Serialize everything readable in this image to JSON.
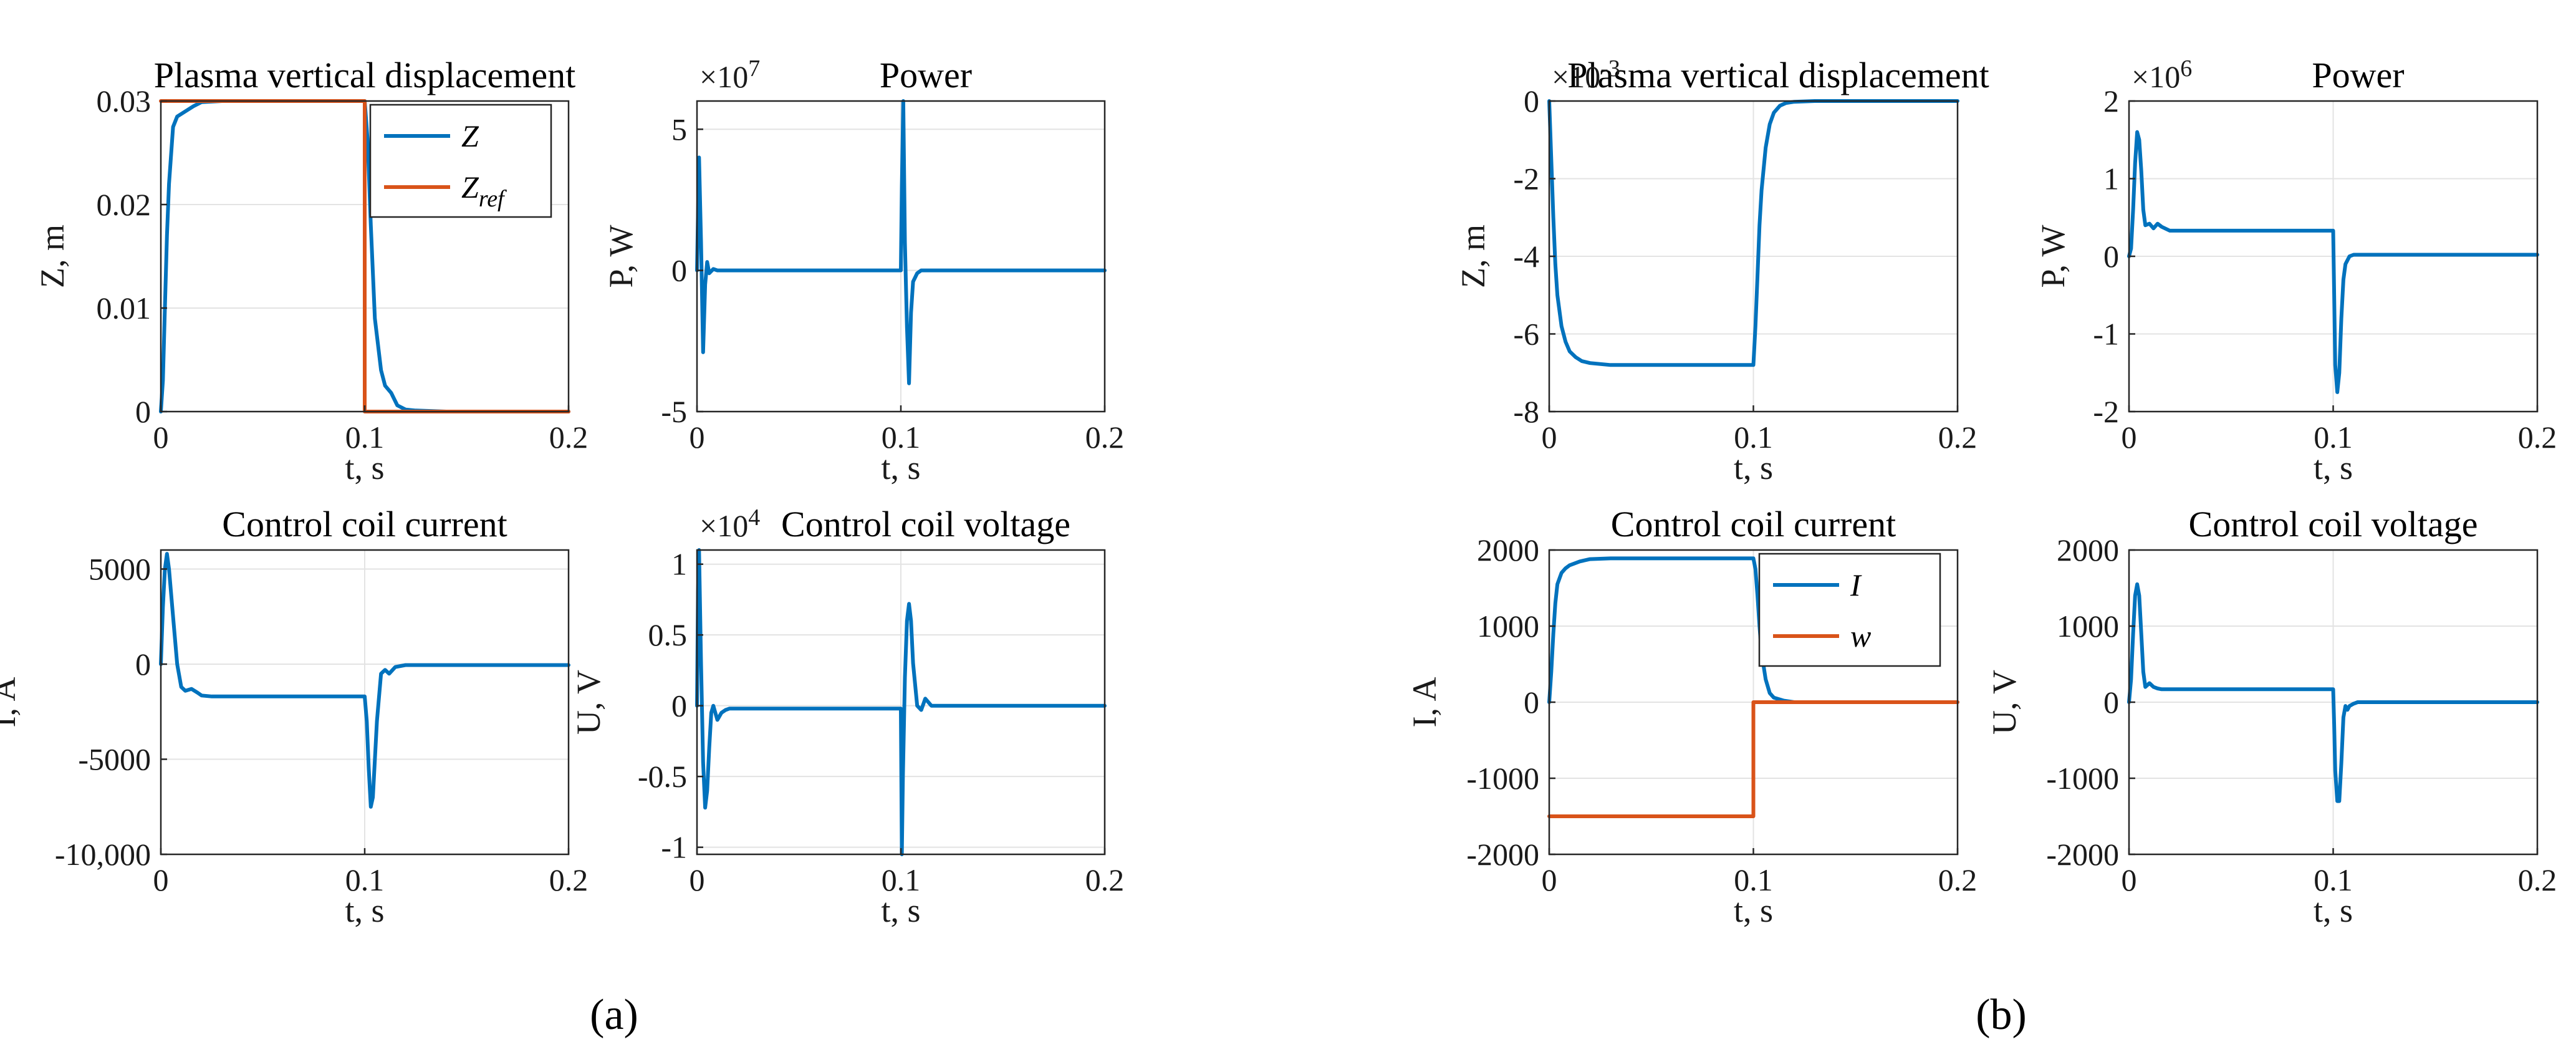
{
  "figure": {
    "caption_a": "(a)",
    "caption_b": "(b)",
    "colors": {
      "blue": "#0072BD",
      "orange": "#D95319",
      "grid": "#e3e3e3",
      "axis": "#262626"
    }
  },
  "chart_data": [
    {
      "id": "a1",
      "type": "line",
      "title": "Plasma vertical displacement",
      "xlabel": "t, s",
      "ylabel": "Z, m",
      "xlim": [
        0,
        0.2
      ],
      "ylim": [
        0,
        0.03
      ],
      "xticks": [
        0,
        0.1,
        0.2
      ],
      "xtick_labels": [
        "0",
        "0.1",
        "0.2"
      ],
      "yticks": [
        0,
        0.01,
        0.02,
        0.03
      ],
      "ytick_labels": [
        "0",
        "0.01",
        "0.02",
        "0.03"
      ],
      "legend": [
        "Z",
        "Zref"
      ],
      "series": [
        {
          "name": "Z",
          "color": "#0072BD",
          "x": [
            0,
            0.001,
            0.002,
            0.003,
            0.004,
            0.006,
            0.008,
            0.012,
            0.016,
            0.02,
            0.03,
            0.05,
            0.08,
            0.1,
            0.1015,
            0.103,
            0.105,
            0.108,
            0.11,
            0.113,
            0.116,
            0.12,
            0.125,
            0.14,
            0.2
          ],
          "y": [
            0,
            0.003,
            0.01,
            0.017,
            0.022,
            0.0275,
            0.0285,
            0.029,
            0.0295,
            0.0299,
            0.03,
            0.03,
            0.03,
            0.03,
            0.026,
            0.018,
            0.009,
            0.004,
            0.0025,
            0.0018,
            0.0006,
            0.0002,
            0.0001,
            0,
            0
          ]
        },
        {
          "name": "Zref",
          "color": "#D95319",
          "x": [
            0,
            0.1,
            0.1,
            0.2
          ],
          "y": [
            0.03,
            0.03,
            0,
            0
          ]
        }
      ]
    },
    {
      "id": "a2",
      "type": "line",
      "title": "Power",
      "multiplier": "×10^7",
      "xlabel": "t, s",
      "ylabel": "P, W",
      "xlim": [
        0,
        0.2
      ],
      "ylim": [
        -5,
        6
      ],
      "xticks": [
        0,
        0.1,
        0.2
      ],
      "xtick_labels": [
        "0",
        "0.1",
        "0.2"
      ],
      "yticks": [
        -5,
        0,
        5
      ],
      "ytick_labels": [
        "-5",
        "0",
        "5"
      ],
      "series": [
        {
          "name": "P",
          "color": "#0072BD",
          "x": [
            0,
            0.0005,
            0.001,
            0.002,
            0.003,
            0.004,
            0.005,
            0.006,
            0.008,
            0.01,
            0.015,
            0.02,
            0.1,
            0.1005,
            0.1012,
            0.102,
            0.103,
            0.104,
            0.105,
            0.106,
            0.108,
            0.11,
            0.2
          ],
          "y": [
            0,
            2,
            4,
            1,
            -2.9,
            -0.5,
            0.3,
            -0.1,
            0.05,
            0,
            0,
            0,
            0,
            3,
            6,
            1,
            -2,
            -4,
            -1.5,
            -0.4,
            -0.1,
            0,
            0
          ]
        }
      ]
    },
    {
      "id": "a3",
      "type": "line",
      "title": "Control coil current",
      "xlabel": "t, s",
      "ylabel": "I, A",
      "xlim": [
        0,
        0.2
      ],
      "ylim": [
        -10000,
        6000
      ],
      "xticks": [
        0,
        0.1,
        0.2
      ],
      "xtick_labels": [
        "0",
        "0.1",
        "0.2"
      ],
      "yticks": [
        -10000,
        -5000,
        0,
        5000
      ],
      "ytick_labels": [
        "-10,000",
        "-5000",
        "0",
        "5000"
      ],
      "series": [
        {
          "name": "I",
          "color": "#0072BD",
          "x": [
            0,
            0.001,
            0.002,
            0.003,
            0.004,
            0.006,
            0.008,
            0.01,
            0.012,
            0.015,
            0.018,
            0.02,
            0.025,
            0.03,
            0.1,
            0.101,
            0.102,
            0.103,
            0.104,
            0.106,
            0.108,
            0.11,
            0.112,
            0.115,
            0.12,
            0.2
          ],
          "y": [
            0,
            3000,
            5000,
            5800,
            5000,
            2500,
            0,
            -1200,
            -1400,
            -1300,
            -1500,
            -1650,
            -1700,
            -1700,
            -1700,
            -3000,
            -5500,
            -7500,
            -7000,
            -3000,
            -500,
            -300,
            -500,
            -150,
            -50,
            -50
          ]
        }
      ]
    },
    {
      "id": "a4",
      "type": "line",
      "title": "Control coil voltage",
      "multiplier": "×10^4",
      "xlabel": "t, s",
      "ylabel": "U, V",
      "xlim": [
        0,
        0.2
      ],
      "ylim": [
        -1.05,
        1.1
      ],
      "xticks": [
        0,
        0.1,
        0.2
      ],
      "xtick_labels": [
        "0",
        "0.1",
        "0.2"
      ],
      "yticks": [
        -1,
        -0.5,
        0,
        0.5,
        1
      ],
      "ytick_labels": [
        "-1",
        "-0.5",
        "0",
        "0.5",
        "1"
      ],
      "series": [
        {
          "name": "U",
          "color": "#0072BD",
          "x": [
            0,
            0.0005,
            0.001,
            0.002,
            0.003,
            0.004,
            0.005,
            0.006,
            0.007,
            0.008,
            0.009,
            0.01,
            0.012,
            0.014,
            0.016,
            0.02,
            0.1,
            0.1005,
            0.101,
            0.102,
            0.103,
            0.104,
            0.105,
            0.106,
            0.108,
            0.11,
            0.112,
            0.115,
            0.2
          ],
          "y": [
            0,
            0.8,
            1.1,
            0.3,
            -0.4,
            -0.72,
            -0.6,
            -0.3,
            -0.05,
            0,
            -0.05,
            -0.1,
            -0.05,
            -0.03,
            -0.02,
            -0.02,
            -0.02,
            -1.05,
            -0.5,
            0.2,
            0.6,
            0.72,
            0.6,
            0.3,
            0,
            -0.03,
            0.05,
            0,
            0
          ]
        }
      ]
    },
    {
      "id": "b1",
      "type": "line",
      "title": "Plasma vertical displacement",
      "multiplier": "×10^-3",
      "xlabel": "t, s",
      "ylabel": "Z, m",
      "xlim": [
        0,
        0.2
      ],
      "ylim": [
        -8,
        0
      ],
      "xticks": [
        0,
        0.1,
        0.2
      ],
      "xtick_labels": [
        "0",
        "0.1",
        "0.2"
      ],
      "yticks": [
        -8,
        -6,
        -4,
        -2,
        0
      ],
      "ytick_labels": [
        "-8",
        "-6",
        "-4",
        "-2",
        "0"
      ],
      "series": [
        {
          "name": "Z",
          "color": "#0072BD",
          "x": [
            0,
            0.001,
            0.002,
            0.003,
            0.004,
            0.006,
            0.008,
            0.01,
            0.013,
            0.016,
            0.02,
            0.03,
            0.05,
            0.1,
            0.101,
            0.102,
            0.103,
            0.104,
            0.106,
            0.108,
            0.11,
            0.113,
            0.116,
            0.12,
            0.13,
            0.2
          ],
          "y": [
            0,
            -1.5,
            -3,
            -4.2,
            -5,
            -5.8,
            -6.2,
            -6.45,
            -6.6,
            -6.7,
            -6.75,
            -6.8,
            -6.8,
            -6.8,
            -5.8,
            -4.5,
            -3.2,
            -2.3,
            -1.2,
            -0.6,
            -0.3,
            -0.12,
            -0.05,
            -0.02,
            0,
            0
          ]
        }
      ]
    },
    {
      "id": "b2",
      "type": "line",
      "title": "Power",
      "multiplier": "×10^6",
      "xlabel": "t, s",
      "ylabel": "P, W",
      "xlim": [
        0,
        0.2
      ],
      "ylim": [
        -2,
        2
      ],
      "xticks": [
        0,
        0.1,
        0.2
      ],
      "xtick_labels": [
        "0",
        "0.1",
        "0.2"
      ],
      "yticks": [
        -2,
        -1,
        0,
        1,
        2
      ],
      "ytick_labels": [
        "-2",
        "-1",
        "0",
        "1",
        "2"
      ],
      "series": [
        {
          "name": "P",
          "color": "#0072BD",
          "x": [
            0,
            0.001,
            0.002,
            0.003,
            0.004,
            0.005,
            0.006,
            0.007,
            0.008,
            0.01,
            0.012,
            0.014,
            0.016,
            0.02,
            0.025,
            0.1,
            0.1005,
            0.101,
            0.102,
            0.103,
            0.104,
            0.105,
            0.106,
            0.108,
            0.11,
            0.2
          ],
          "y": [
            0,
            0.1,
            0.6,
            1.2,
            1.6,
            1.5,
            1.1,
            0.6,
            0.4,
            0.42,
            0.36,
            0.42,
            0.38,
            0.33,
            0.33,
            0.33,
            -0.5,
            -1.4,
            -1.75,
            -1.5,
            -0.8,
            -0.3,
            -0.1,
            0,
            0.02,
            0.02
          ]
        }
      ]
    },
    {
      "id": "b3",
      "type": "line",
      "title": "Control coil current",
      "xlabel": "t, s",
      "ylabel": "I, A",
      "xlim": [
        0,
        0.2
      ],
      "ylim": [
        -2000,
        2000
      ],
      "xticks": [
        0,
        0.1,
        0.2
      ],
      "xtick_labels": [
        "0",
        "0.1",
        "0.2"
      ],
      "yticks": [
        -2000,
        -1000,
        0,
        1000,
        2000
      ],
      "ytick_labels": [
        "-2000",
        "-1000",
        "0",
        "1000",
        "2000"
      ],
      "legend": [
        "I",
        "w"
      ],
      "series": [
        {
          "name": "I",
          "color": "#0072BD",
          "x": [
            0,
            0.001,
            0.002,
            0.003,
            0.004,
            0.006,
            0.008,
            0.01,
            0.015,
            0.02,
            0.03,
            0.1,
            0.101,
            0.102,
            0.103,
            0.104,
            0.106,
            0.108,
            0.11,
            0.115,
            0.12,
            0.2
          ],
          "y": [
            0,
            400,
            900,
            1300,
            1550,
            1700,
            1760,
            1800,
            1850,
            1880,
            1890,
            1890,
            1750,
            1400,
            1000,
            650,
            300,
            120,
            60,
            20,
            0,
            0
          ]
        },
        {
          "name": "w",
          "color": "#D95319",
          "x": [
            0,
            0.1,
            0.1,
            0.2
          ],
          "y": [
            -1500,
            -1500,
            0,
            0
          ]
        }
      ]
    },
    {
      "id": "b4",
      "type": "line",
      "title": "Control coil voltage",
      "xlabel": "t, s",
      "ylabel": "U, V",
      "xlim": [
        0,
        0.2
      ],
      "ylim": [
        -2000,
        2000
      ],
      "xticks": [
        0,
        0.1,
        0.2
      ],
      "xtick_labels": [
        "0",
        "0.1",
        "0.2"
      ],
      "yticks": [
        -2000,
        -1000,
        0,
        1000,
        2000
      ],
      "ytick_labels": [
        "-2000",
        "-1000",
        "0",
        "1000",
        "2000"
      ],
      "series": [
        {
          "name": "U",
          "color": "#0072BD",
          "x": [
            0,
            0.001,
            0.002,
            0.003,
            0.004,
            0.005,
            0.006,
            0.007,
            0.008,
            0.01,
            0.012,
            0.014,
            0.016,
            0.02,
            0.1,
            0.1005,
            0.101,
            0.102,
            0.103,
            0.104,
            0.105,
            0.106,
            0.107,
            0.108,
            0.11,
            0.112,
            0.2
          ],
          "y": [
            0,
            300,
            900,
            1400,
            1550,
            1400,
            900,
            400,
            200,
            250,
            200,
            180,
            170,
            170,
            170,
            -300,
            -900,
            -1300,
            -1300,
            -800,
            -200,
            -50,
            -100,
            -50,
            -20,
            0,
            0
          ]
        }
      ]
    }
  ]
}
